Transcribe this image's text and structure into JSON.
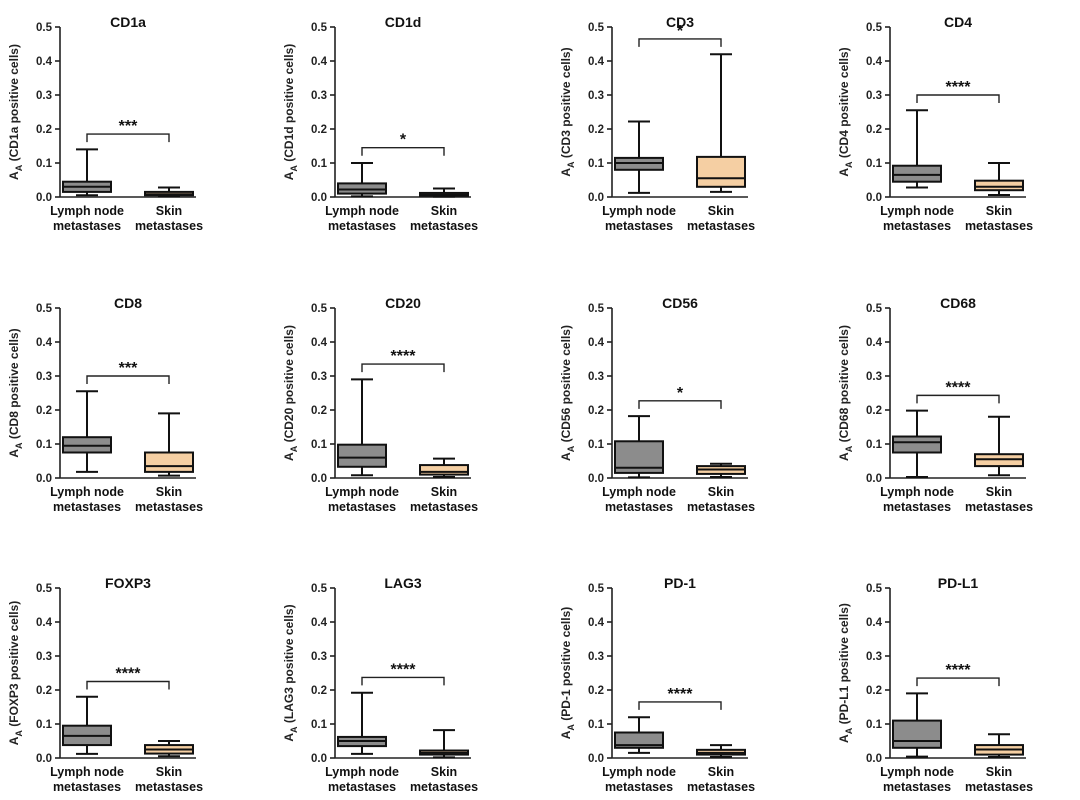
{
  "figure": {
    "y_label_template": "(%s positive cells)",
    "y_label_symbol": "A",
    "y_label_subscript": "A",
    "colors": {
      "lymph_node": "#8c8c8c",
      "skin": "#f5cfa3",
      "axis": "#222222",
      "box_outline": "#111111"
    }
  },
  "chart_data": [
    {
      "type": "box",
      "title": "CD1a",
      "marker": "CD1a",
      "categories": [
        "Lymph node metastases",
        "Skin metastases"
      ],
      "category_lines": [
        [
          "Lymph node",
          "metastases"
        ],
        [
          "Skin",
          "metastases"
        ]
      ],
      "ylim": [
        0,
        0.5
      ],
      "yticks": [
        0,
        0.1,
        0.2,
        0.3,
        0.4,
        0.5
      ],
      "ytick_labels": [
        "0.0",
        "0.1",
        "0.2",
        "0.3",
        "0.4",
        "0.5"
      ],
      "ylabel": "AA (CD1a positive cells)",
      "significance": "***",
      "series": [
        {
          "name": "Lymph node metastases",
          "min": 0.005,
          "q1": 0.015,
          "median": 0.03,
          "q3": 0.045,
          "max": 0.14,
          "color": "#8c8c8c"
        },
        {
          "name": "Skin metastases",
          "min": 0.002,
          "q1": 0.005,
          "median": 0.008,
          "q3": 0.015,
          "max": 0.028,
          "color": "#f5cfa3"
        }
      ]
    },
    {
      "type": "box",
      "title": "CD1d",
      "marker": "CD1d",
      "categories": [
        "Lymph node metastases",
        "Skin metastases"
      ],
      "category_lines": [
        [
          "Lymph node",
          "metastases"
        ],
        [
          "Skin",
          "metastases"
        ]
      ],
      "ylim": [
        0,
        0.5
      ],
      "yticks": [
        0,
        0.1,
        0.2,
        0.3,
        0.4,
        0.5
      ],
      "ytick_labels": [
        "0.0",
        "0.1",
        "0.2",
        "0.3",
        "0.4",
        "0.5"
      ],
      "ylabel": "AA (CD1d positive cells)",
      "significance": "*",
      "series": [
        {
          "name": "Lymph node metastases",
          "min": 0.002,
          "q1": 0.01,
          "median": 0.022,
          "q3": 0.04,
          "max": 0.1,
          "color": "#8c8c8c"
        },
        {
          "name": "Skin metastases",
          "min": 0.001,
          "q1": 0.004,
          "median": 0.007,
          "q3": 0.012,
          "max": 0.025,
          "color": "#f5cfa3"
        }
      ]
    },
    {
      "type": "box",
      "title": "CD3",
      "marker": "CD3",
      "categories": [
        "Lymph node metastases",
        "Skin metastases"
      ],
      "category_lines": [
        [
          "Lymph node",
          "metastases"
        ],
        [
          "Skin",
          "metastases"
        ]
      ],
      "ylim": [
        0,
        0.5
      ],
      "yticks": [
        0,
        0.1,
        0.2,
        0.3,
        0.4,
        0.5
      ],
      "ytick_labels": [
        "0.0",
        "0.1",
        "0.2",
        "0.3",
        "0.4",
        "0.5"
      ],
      "ylabel": "AA (CD3 positive cells)",
      "significance": "*",
      "series": [
        {
          "name": "Lymph node metastases",
          "min": 0.012,
          "q1": 0.08,
          "median": 0.1,
          "q3": 0.115,
          "max": 0.222,
          "color": "#8c8c8c"
        },
        {
          "name": "Skin metastases",
          "min": 0.015,
          "q1": 0.03,
          "median": 0.055,
          "q3": 0.118,
          "max": 0.42,
          "color": "#f5cfa3"
        }
      ]
    },
    {
      "type": "box",
      "title": "CD4",
      "marker": "CD4",
      "categories": [
        "Lymph node metastases",
        "Skin metastases"
      ],
      "category_lines": [
        [
          "Lymph node",
          "metastases"
        ],
        [
          "Skin",
          "metastases"
        ]
      ],
      "ylim": [
        0,
        0.5
      ],
      "yticks": [
        0,
        0.1,
        0.2,
        0.3,
        0.4,
        0.5
      ],
      "ytick_labels": [
        "0.0",
        "0.1",
        "0.2",
        "0.3",
        "0.4",
        "0.5"
      ],
      "ylabel": "AA (CD4 positive cells)",
      "significance": "****",
      "series": [
        {
          "name": "Lymph node metastases",
          "min": 0.028,
          "q1": 0.045,
          "median": 0.065,
          "q3": 0.092,
          "max": 0.255,
          "color": "#8c8c8c"
        },
        {
          "name": "Skin metastases",
          "min": 0.006,
          "q1": 0.02,
          "median": 0.03,
          "q3": 0.048,
          "max": 0.1,
          "color": "#f5cfa3"
        }
      ]
    },
    {
      "type": "box",
      "title": "CD8",
      "marker": "CD8",
      "categories": [
        "Lymph node metastases",
        "Skin metastases"
      ],
      "category_lines": [
        [
          "Lymph node",
          "metastases"
        ],
        [
          "Skin",
          "metastases"
        ]
      ],
      "ylim": [
        0,
        0.5
      ],
      "yticks": [
        0,
        0.1,
        0.2,
        0.3,
        0.4,
        0.5
      ],
      "ytick_labels": [
        "0.0",
        "0.1",
        "0.2",
        "0.3",
        "0.4",
        "0.5"
      ],
      "ylabel": "AA (CD8 positive cells)",
      "significance": "***",
      "series": [
        {
          "name": "Lymph node metastases",
          "min": 0.018,
          "q1": 0.075,
          "median": 0.095,
          "q3": 0.12,
          "max": 0.255,
          "color": "#8c8c8c"
        },
        {
          "name": "Skin metastases",
          "min": 0.007,
          "q1": 0.018,
          "median": 0.035,
          "q3": 0.075,
          "max": 0.19,
          "color": "#f5cfa3"
        }
      ]
    },
    {
      "type": "box",
      "title": "CD20",
      "marker": "CD20",
      "categories": [
        "Lymph node metastases",
        "Skin metastases"
      ],
      "category_lines": [
        [
          "Lymph node",
          "metastases"
        ],
        [
          "Skin",
          "metastases"
        ]
      ],
      "ylim": [
        0,
        0.5
      ],
      "yticks": [
        0,
        0.1,
        0.2,
        0.3,
        0.4,
        0.5
      ],
      "ytick_labels": [
        "0.0",
        "0.1",
        "0.2",
        "0.3",
        "0.4",
        "0.5"
      ],
      "ylabel": "AA (CD20 positive cells)",
      "significance": "****",
      "series": [
        {
          "name": "Lymph node metastases",
          "min": 0.008,
          "q1": 0.033,
          "median": 0.06,
          "q3": 0.098,
          "max": 0.29,
          "color": "#8c8c8c"
        },
        {
          "name": "Skin metastases",
          "min": 0.003,
          "q1": 0.01,
          "median": 0.018,
          "q3": 0.038,
          "max": 0.057,
          "color": "#f5cfa3"
        }
      ]
    },
    {
      "type": "box",
      "title": "CD56",
      "marker": "CD56",
      "categories": [
        "Lymph node metastases",
        "Skin metastases"
      ],
      "category_lines": [
        [
          "Lymph node",
          "metastases"
        ],
        [
          "Skin",
          "metastases"
        ]
      ],
      "ylim": [
        0,
        0.5
      ],
      "yticks": [
        0,
        0.1,
        0.2,
        0.3,
        0.4,
        0.5
      ],
      "ytick_labels": [
        "0.0",
        "0.1",
        "0.2",
        "0.3",
        "0.4",
        "0.5"
      ],
      "ylabel": "AA (CD56 positive cells)",
      "significance": "*",
      "series": [
        {
          "name": "Lymph node metastases",
          "min": 0.002,
          "q1": 0.015,
          "median": 0.03,
          "q3": 0.108,
          "max": 0.182,
          "color": "#8c8c8c"
        },
        {
          "name": "Skin metastases",
          "min": 0.003,
          "q1": 0.012,
          "median": 0.025,
          "q3": 0.035,
          "max": 0.042,
          "color": "#f5cfa3"
        }
      ]
    },
    {
      "type": "box",
      "title": "CD68",
      "marker": "CD68",
      "categories": [
        "Lymph node metastases",
        "Skin metastases"
      ],
      "category_lines": [
        [
          "Lymph node",
          "metastases"
        ],
        [
          "Skin",
          "metastases"
        ]
      ],
      "ylim": [
        0,
        0.5
      ],
      "yticks": [
        0,
        0.1,
        0.2,
        0.3,
        0.4,
        0.5
      ],
      "ytick_labels": [
        "0.0",
        "0.1",
        "0.2",
        "0.3",
        "0.4",
        "0.5"
      ],
      "ylabel": "AA (CD68 positive cells)",
      "significance": "****",
      "series": [
        {
          "name": "Lymph node metastases",
          "min": 0.003,
          "q1": 0.075,
          "median": 0.105,
          "q3": 0.122,
          "max": 0.198,
          "color": "#8c8c8c"
        },
        {
          "name": "Skin metastases",
          "min": 0.008,
          "q1": 0.035,
          "median": 0.055,
          "q3": 0.07,
          "max": 0.18,
          "color": "#f5cfa3"
        }
      ]
    },
    {
      "type": "box",
      "title": "FOXP3",
      "marker": "FOXP3",
      "categories": [
        "Lymph node metastases",
        "Skin metastases"
      ],
      "category_lines": [
        [
          "Lymph node",
          "metastases"
        ],
        [
          "Skin",
          "metastases"
        ]
      ],
      "ylim": [
        0,
        0.5
      ],
      "yticks": [
        0,
        0.1,
        0.2,
        0.3,
        0.4,
        0.5
      ],
      "ytick_labels": [
        "0.0",
        "0.1",
        "0.2",
        "0.3",
        "0.4",
        "0.5"
      ],
      "ylabel": "AA (FOXP3 positive cells)",
      "significance": "****",
      "series": [
        {
          "name": "Lymph node metastases",
          "min": 0.012,
          "q1": 0.038,
          "median": 0.065,
          "q3": 0.095,
          "max": 0.18,
          "color": "#8c8c8c"
        },
        {
          "name": "Skin metastases",
          "min": 0.005,
          "q1": 0.013,
          "median": 0.025,
          "q3": 0.038,
          "max": 0.05,
          "color": "#f5cfa3"
        }
      ]
    },
    {
      "type": "box",
      "title": "LAG3",
      "marker": "LAG3",
      "categories": [
        "Lymph node metastases",
        "Skin metastases"
      ],
      "category_lines": [
        [
          "Lymph node",
          "metastases"
        ],
        [
          "Skin",
          "metastases"
        ]
      ],
      "ylim": [
        0,
        0.5
      ],
      "yticks": [
        0,
        0.1,
        0.2,
        0.3,
        0.4,
        0.5
      ],
      "ytick_labels": [
        "0.0",
        "0.1",
        "0.2",
        "0.3",
        "0.4",
        "0.5"
      ],
      "ylabel": "AA (LAG3 positive cells)",
      "significance": "****",
      "series": [
        {
          "name": "Lymph node metastases",
          "min": 0.012,
          "q1": 0.035,
          "median": 0.05,
          "q3": 0.062,
          "max": 0.192,
          "color": "#8c8c8c"
        },
        {
          "name": "Skin metastases",
          "min": 0.002,
          "q1": 0.01,
          "median": 0.015,
          "q3": 0.022,
          "max": 0.082,
          "color": "#f5cfa3"
        }
      ]
    },
    {
      "type": "box",
      "title": "PD-1",
      "marker": "PD-1",
      "categories": [
        "Lymph node metastases",
        "Skin metastases"
      ],
      "category_lines": [
        [
          "Lymph node",
          "metastases"
        ],
        [
          "Skin",
          "metastases"
        ]
      ],
      "ylim": [
        0,
        0.5
      ],
      "yticks": [
        0,
        0.1,
        0.2,
        0.3,
        0.4,
        0.5
      ],
      "ytick_labels": [
        "0.0",
        "0.1",
        "0.2",
        "0.3",
        "0.4",
        "0.5"
      ],
      "ylabel": "AA (PD-1 positive cells)",
      "significance": "****",
      "series": [
        {
          "name": "Lymph node metastases",
          "min": 0.015,
          "q1": 0.03,
          "median": 0.038,
          "q3": 0.075,
          "max": 0.12,
          "color": "#8c8c8c"
        },
        {
          "name": "Skin metastases",
          "min": 0.003,
          "q1": 0.01,
          "median": 0.015,
          "q3": 0.024,
          "max": 0.038,
          "color": "#f5cfa3"
        }
      ]
    },
    {
      "type": "box",
      "title": "PD-L1",
      "marker": "PD-L1",
      "categories": [
        "Lymph node metastases",
        "Skin metastases"
      ],
      "category_lines": [
        [
          "Lymph node",
          "metastases"
        ],
        [
          "Skin",
          "metastases"
        ]
      ],
      "ylim": [
        0,
        0.5
      ],
      "yticks": [
        0,
        0.1,
        0.2,
        0.3,
        0.4,
        0.5
      ],
      "ytick_labels": [
        "0.0",
        "0.1",
        "0.2",
        "0.3",
        "0.4",
        "0.5"
      ],
      "ylabel": "AA (PD-L1 positive cells)",
      "significance": "****",
      "series": [
        {
          "name": "Lymph node metastases",
          "min": 0.004,
          "q1": 0.03,
          "median": 0.05,
          "q3": 0.11,
          "max": 0.19,
          "color": "#8c8c8c"
        },
        {
          "name": "Skin metastases",
          "min": 0.003,
          "q1": 0.01,
          "median": 0.025,
          "q3": 0.038,
          "max": 0.07,
          "color": "#f5cfa3"
        }
      ]
    }
  ]
}
